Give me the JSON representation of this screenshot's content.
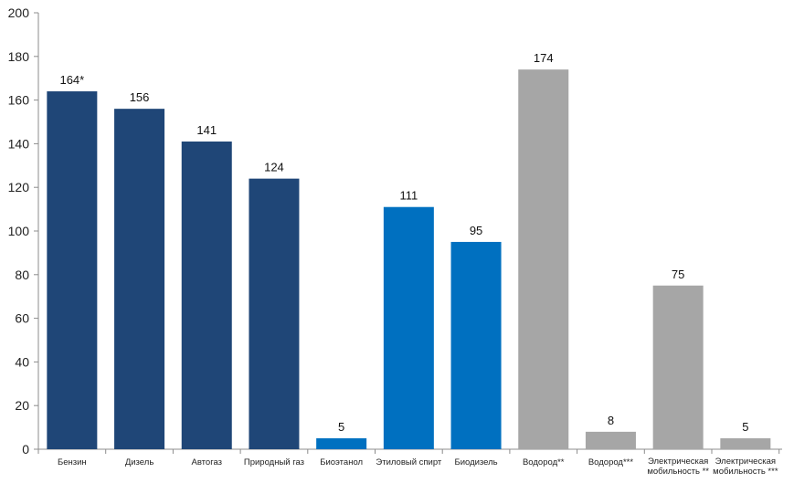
{
  "chart_data": {
    "type": "bar",
    "title": "",
    "xlabel": "",
    "ylabel": "",
    "ylim": [
      0,
      200
    ],
    "yticks": [
      0,
      20,
      40,
      60,
      80,
      100,
      120,
      140,
      160,
      180,
      200
    ],
    "grid": false,
    "legend": "none",
    "colors": {
      "dark_blue": "#1f4677",
      "blue": "#0070c0",
      "gray": "#a6a6a6",
      "axis": "#8c8c8c"
    },
    "bars": [
      {
        "category": [
          "Бензин"
        ],
        "value": 164,
        "label": "164*",
        "color": "dark_blue"
      },
      {
        "category": [
          "Дизель"
        ],
        "value": 156,
        "label": "156",
        "color": "dark_blue"
      },
      {
        "category": [
          "Автогаз"
        ],
        "value": 141,
        "label": "141",
        "color": "dark_blue"
      },
      {
        "category": [
          "Природный газ"
        ],
        "value": 124,
        "label": "124",
        "color": "dark_blue"
      },
      {
        "category": [
          "Биоэтанол"
        ],
        "value": 5,
        "label": "5",
        "color": "blue"
      },
      {
        "category": [
          "Этиловый спирт"
        ],
        "value": 111,
        "label": "111",
        "color": "blue"
      },
      {
        "category": [
          "Биодизель"
        ],
        "value": 95,
        "label": "95",
        "color": "blue"
      },
      {
        "category": [
          "Водород**"
        ],
        "value": 174,
        "label": "174",
        "color": "gray"
      },
      {
        "category": [
          "Водород***"
        ],
        "value": 8,
        "label": "8",
        "color": "gray"
      },
      {
        "category": [
          "Электрическая",
          "мобильность **"
        ],
        "value": 75,
        "label": "75",
        "color": "gray"
      },
      {
        "category": [
          "Электрическая",
          "мобильность ***"
        ],
        "value": 5,
        "label": "5",
        "color": "gray"
      }
    ]
  }
}
